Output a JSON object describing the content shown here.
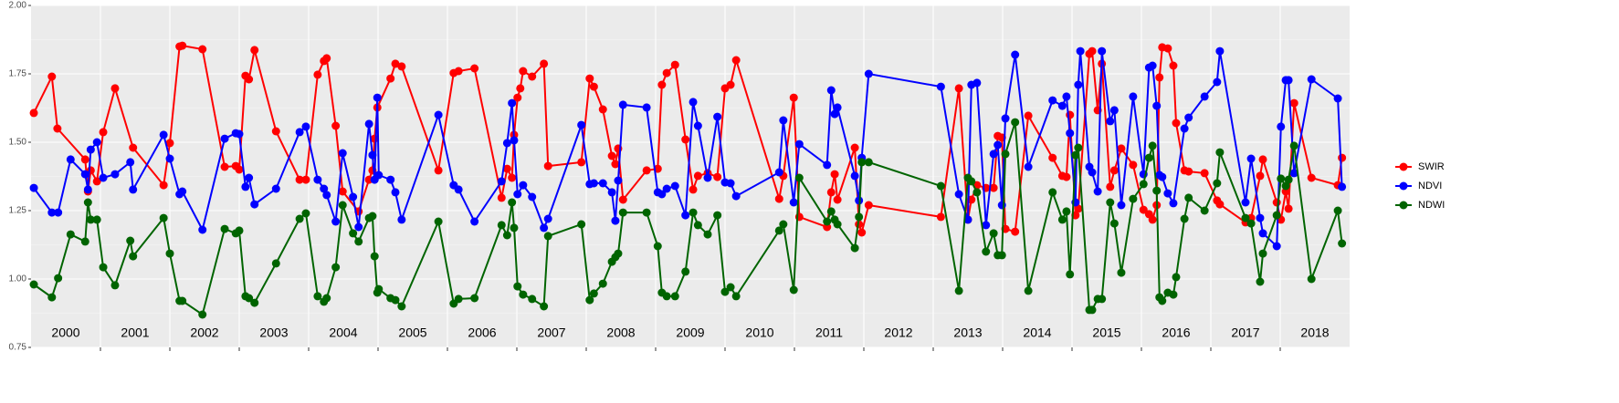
{
  "chart_data": {
    "type": "line",
    "xlim": [
      2000,
      2019
    ],
    "xticks": [
      {
        "value": 2000.5,
        "label": "2000"
      },
      {
        "value": 2001.5,
        "label": "2001"
      },
      {
        "value": 2002.5,
        "label": "2002"
      },
      {
        "value": 2003.5,
        "label": "2003"
      },
      {
        "value": 2004.5,
        "label": "2004"
      },
      {
        "value": 2005.5,
        "label": "2005"
      },
      {
        "value": 2006.5,
        "label": "2006"
      },
      {
        "value": 2007.5,
        "label": "2007"
      },
      {
        "value": 2008.5,
        "label": "2008"
      },
      {
        "value": 2009.5,
        "label": "2009"
      },
      {
        "value": 2010.5,
        "label": "2010"
      },
      {
        "value": 2011.5,
        "label": "2011"
      },
      {
        "value": 2012.5,
        "label": "2012"
      },
      {
        "value": 2013.5,
        "label": "2013"
      },
      {
        "value": 2014.5,
        "label": "2014"
      },
      {
        "value": 2015.5,
        "label": "2015"
      },
      {
        "value": 2016.5,
        "label": "2016"
      },
      {
        "value": 2017.5,
        "label": "2017"
      },
      {
        "value": 2018.5,
        "label": "2018"
      }
    ],
    "ylim": [
      0.75,
      2.0
    ],
    "yticks": [
      {
        "value": 0.75,
        "label": "0.75"
      },
      {
        "value": 1.0,
        "label": "1.00"
      },
      {
        "value": 1.25,
        "label": "1.25"
      },
      {
        "value": 1.5,
        "label": "1.50"
      },
      {
        "value": 1.75,
        "label": "1.75"
      },
      {
        "value": 2.0,
        "label": "2.00"
      }
    ],
    "grid": true,
    "legend": "right",
    "series": [
      {
        "name": "SWIR",
        "color": "#ff0000",
        "x": [
          2000.04,
          2000.3,
          2000.38,
          2000.78,
          2000.82,
          2000.86,
          2000.95,
          2001.04,
          2001.21,
          2001.47,
          2001.91,
          2002.0,
          2002.14,
          2002.18,
          2002.47,
          2002.79,
          2002.95,
          2003.0,
          2003.09,
          2003.14,
          2003.22,
          2003.53,
          2003.87,
          2003.96,
          2004.13,
          2004.22,
          2004.26,
          2004.39,
          2004.49,
          2004.72,
          2004.87,
          2004.92,
          2004.95,
          2004.99,
          2005.18,
          2005.25,
          2005.34,
          2005.87,
          2006.09,
          2006.16,
          2006.39,
          2006.78,
          2006.86,
          2006.93,
          2006.96,
          2007.01,
          2007.05,
          2007.09,
          2007.22,
          2007.39,
          2007.45,
          2007.93,
          2008.05,
          2008.11,
          2008.24,
          2008.37,
          2008.42,
          2008.46,
          2008.53,
          2008.87,
          2009.03,
          2009.09,
          2009.16,
          2009.28,
          2009.43,
          2009.54,
          2009.61,
          2009.75,
          2009.89,
          2010.0,
          2010.08,
          2010.16,
          2010.78,
          2010.84,
          2010.99,
          2011.07,
          2011.47,
          2011.53,
          2011.58,
          2011.62,
          2011.87,
          2011.93,
          2011.97,
          2012.07,
          2013.11,
          2013.37,
          2013.5,
          2013.55,
          2013.63,
          2013.76,
          2013.87,
          2013.93,
          2013.99,
          2014.04,
          2014.18,
          2014.37,
          2014.72,
          2014.86,
          2014.92,
          2014.97,
          2015.05,
          2015.09,
          2015.25,
          2015.29,
          2015.37,
          2015.43,
          2015.55,
          2015.61,
          2015.71,
          2015.88,
          2016.03,
          2016.11,
          2016.16,
          2016.22,
          2016.26,
          2016.3,
          2016.38,
          2016.46,
          2016.5,
          2016.62,
          2016.68,
          2016.91,
          2017.09,
          2017.13,
          2017.5,
          2017.58,
          2017.71,
          2017.75,
          2017.95,
          2018.01,
          2018.08,
          2018.12,
          2018.2,
          2018.45,
          2018.83,
          2018.89
        ],
        "values": [
          1.607,
          1.74,
          1.55,
          1.437,
          1.32,
          1.397,
          1.357,
          1.537,
          1.697,
          1.48,
          1.343,
          1.497,
          1.85,
          1.853,
          1.84,
          1.41,
          1.413,
          1.4,
          1.743,
          1.73,
          1.837,
          1.54,
          1.363,
          1.363,
          1.747,
          1.797,
          1.807,
          1.56,
          1.32,
          1.247,
          1.363,
          1.397,
          1.513,
          1.627,
          1.733,
          1.787,
          1.777,
          1.397,
          1.753,
          1.76,
          1.77,
          1.297,
          1.403,
          1.37,
          1.527,
          1.663,
          1.697,
          1.76,
          1.74,
          1.787,
          1.413,
          1.427,
          1.733,
          1.703,
          1.62,
          1.45,
          1.42,
          1.477,
          1.29,
          1.397,
          1.403,
          1.71,
          1.753,
          1.783,
          1.51,
          1.327,
          1.377,
          1.387,
          1.373,
          1.697,
          1.71,
          1.8,
          1.293,
          1.377,
          1.663,
          1.227,
          1.19,
          1.317,
          1.383,
          1.29,
          1.48,
          1.2,
          1.17,
          1.27,
          1.227,
          1.697,
          1.217,
          1.29,
          1.343,
          1.333,
          1.333,
          1.523,
          1.517,
          1.183,
          1.173,
          1.597,
          1.443,
          1.377,
          1.373,
          1.6,
          1.233,
          1.257,
          1.823,
          1.833,
          1.617,
          1.787,
          1.337,
          1.397,
          1.477,
          1.417,
          1.253,
          1.237,
          1.217,
          1.27,
          1.737,
          1.847,
          1.843,
          1.78,
          1.57,
          1.397,
          1.393,
          1.387,
          1.287,
          1.273,
          1.207,
          1.223,
          1.377,
          1.437,
          1.28,
          1.217,
          1.32,
          1.257,
          1.643,
          1.37,
          1.343,
          1.443
        ]
      },
      {
        "name": "NDVI",
        "color": "#0000ff",
        "x": [
          2000.04,
          2000.3,
          2000.39,
          2000.57,
          2000.78,
          2000.82,
          2000.86,
          2000.95,
          2001.04,
          2001.21,
          2001.43,
          2001.47,
          2001.91,
          2002.0,
          2002.14,
          2002.18,
          2002.47,
          2002.79,
          2002.95,
          2003.0,
          2003.09,
          2003.14,
          2003.22,
          2003.53,
          2003.87,
          2003.96,
          2004.13,
          2004.22,
          2004.26,
          2004.39,
          2004.49,
          2004.64,
          2004.72,
          2004.87,
          2004.92,
          2004.95,
          2004.99,
          2005.01,
          2005.18,
          2005.25,
          2005.34,
          2005.87,
          2006.09,
          2006.16,
          2006.39,
          2006.78,
          2006.86,
          2006.93,
          2006.96,
          2007.01,
          2007.09,
          2007.22,
          2007.39,
          2007.45,
          2007.93,
          2008.05,
          2008.11,
          2008.24,
          2008.37,
          2008.42,
          2008.46,
          2008.53,
          2008.87,
          2009.03,
          2009.09,
          2009.16,
          2009.28,
          2009.43,
          2009.54,
          2009.61,
          2009.75,
          2009.89,
          2010.0,
          2010.08,
          2010.16,
          2010.78,
          2010.84,
          2010.99,
          2011.07,
          2011.47,
          2011.53,
          2011.58,
          2011.62,
          2011.87,
          2011.93,
          2011.97,
          2012.07,
          2013.11,
          2013.37,
          2013.5,
          2013.55,
          2013.63,
          2013.76,
          2013.87,
          2013.93,
          2013.99,
          2014.04,
          2014.18,
          2014.37,
          2014.72,
          2014.86,
          2014.92,
          2014.97,
          2015.05,
          2015.09,
          2015.12,
          2015.25,
          2015.29,
          2015.37,
          2015.43,
          2015.55,
          2015.61,
          2015.71,
          2015.88,
          2016.03,
          2016.11,
          2016.16,
          2016.22,
          2016.26,
          2016.3,
          2016.38,
          2016.46,
          2016.62,
          2016.68,
          2016.91,
          2017.09,
          2017.13,
          2017.5,
          2017.58,
          2017.71,
          2017.75,
          2017.95,
          2018.01,
          2018.08,
          2018.12,
          2018.2,
          2018.45,
          2018.83,
          2018.89
        ],
        "values": [
          1.333,
          1.243,
          1.243,
          1.437,
          1.383,
          1.327,
          1.473,
          1.5,
          1.37,
          1.383,
          1.427,
          1.327,
          1.527,
          1.44,
          1.31,
          1.32,
          1.18,
          1.513,
          1.533,
          1.53,
          1.337,
          1.37,
          1.273,
          1.33,
          1.537,
          1.557,
          1.363,
          1.33,
          1.307,
          1.21,
          1.46,
          1.3,
          1.19,
          1.567,
          1.453,
          1.363,
          1.663,
          1.38,
          1.363,
          1.317,
          1.217,
          1.6,
          1.343,
          1.327,
          1.21,
          1.357,
          1.497,
          1.643,
          1.507,
          1.31,
          1.343,
          1.3,
          1.187,
          1.22,
          1.563,
          1.347,
          1.35,
          1.35,
          1.317,
          1.213,
          1.36,
          1.637,
          1.627,
          1.317,
          1.31,
          1.33,
          1.34,
          1.233,
          1.647,
          1.56,
          1.37,
          1.593,
          1.353,
          1.35,
          1.303,
          1.39,
          1.58,
          1.28,
          1.493,
          1.417,
          1.69,
          1.603,
          1.627,
          1.377,
          1.287,
          1.443,
          1.75,
          1.703,
          1.31,
          1.217,
          1.71,
          1.717,
          1.197,
          1.457,
          1.49,
          1.27,
          1.587,
          1.82,
          1.41,
          1.653,
          1.633,
          1.667,
          1.533,
          1.28,
          1.71,
          1.833,
          1.41,
          1.39,
          1.32,
          1.833,
          1.577,
          1.617,
          1.27,
          1.667,
          1.383,
          1.773,
          1.78,
          1.633,
          1.38,
          1.373,
          1.313,
          1.277,
          1.55,
          1.59,
          1.667,
          1.72,
          1.833,
          1.28,
          1.44,
          1.223,
          1.167,
          1.12,
          1.557,
          1.727,
          1.727,
          1.387,
          1.73,
          1.66,
          1.337
        ]
      },
      {
        "name": "NDWI",
        "color": "#006400",
        "x": [
          2000.04,
          2000.3,
          2000.39,
          2000.57,
          2000.78,
          2000.82,
          2000.86,
          2000.95,
          2001.04,
          2001.21,
          2001.43,
          2001.47,
          2001.91,
          2002.0,
          2002.14,
          2002.18,
          2002.47,
          2002.79,
          2002.95,
          2003.0,
          2003.09,
          2003.14,
          2003.22,
          2003.53,
          2003.87,
          2003.96,
          2004.13,
          2004.22,
          2004.26,
          2004.39,
          2004.49,
          2004.64,
          2004.72,
          2004.87,
          2004.92,
          2004.95,
          2004.99,
          2005.01,
          2005.18,
          2005.25,
          2005.34,
          2005.87,
          2006.09,
          2006.16,
          2006.39,
          2006.78,
          2006.86,
          2006.93,
          2006.96,
          2007.01,
          2007.09,
          2007.22,
          2007.39,
          2007.45,
          2007.93,
          2008.05,
          2008.11,
          2008.24,
          2008.37,
          2008.42,
          2008.46,
          2008.53,
          2008.87,
          2009.03,
          2009.09,
          2009.16,
          2009.28,
          2009.43,
          2009.54,
          2009.61,
          2009.75,
          2009.89,
          2010.0,
          2010.08,
          2010.16,
          2010.78,
          2010.84,
          2010.99,
          2011.07,
          2011.47,
          2011.53,
          2011.58,
          2011.62,
          2011.87,
          2011.93,
          2011.97,
          2012.07,
          2013.11,
          2013.37,
          2013.5,
          2013.55,
          2013.63,
          2013.76,
          2013.87,
          2013.93,
          2013.99,
          2014.04,
          2014.18,
          2014.37,
          2014.72,
          2014.86,
          2014.92,
          2014.97,
          2015.05,
          2015.09,
          2015.25,
          2015.29,
          2015.37,
          2015.43,
          2015.55,
          2015.61,
          2015.71,
          2015.88,
          2016.03,
          2016.11,
          2016.16,
          2016.22,
          2016.26,
          2016.3,
          2016.38,
          2016.46,
          2016.5,
          2016.62,
          2016.68,
          2016.91,
          2017.09,
          2017.13,
          2017.5,
          2017.58,
          2017.71,
          2017.75,
          2017.95,
          2018.01,
          2018.08,
          2018.12,
          2018.2,
          2018.45,
          2018.83,
          2018.89
        ],
        "values": [
          0.98,
          0.933,
          1.003,
          1.163,
          1.137,
          1.28,
          1.217,
          1.217,
          1.043,
          0.977,
          1.14,
          1.083,
          1.223,
          1.093,
          0.92,
          0.92,
          0.87,
          1.183,
          1.167,
          1.177,
          0.937,
          0.93,
          0.913,
          1.057,
          1.22,
          1.24,
          0.937,
          0.917,
          0.93,
          1.043,
          1.27,
          1.167,
          1.137,
          1.223,
          1.23,
          1.083,
          0.95,
          0.963,
          0.93,
          0.923,
          0.9,
          1.21,
          0.91,
          0.927,
          0.93,
          1.197,
          1.16,
          1.28,
          1.187,
          0.973,
          0.943,
          0.927,
          0.9,
          1.157,
          1.2,
          0.923,
          0.947,
          0.983,
          1.063,
          1.08,
          1.093,
          1.243,
          1.243,
          1.12,
          0.95,
          0.937,
          0.937,
          1.027,
          1.243,
          1.197,
          1.163,
          1.233,
          0.953,
          0.97,
          0.937,
          1.177,
          1.2,
          0.96,
          1.37,
          1.21,
          1.247,
          1.217,
          1.2,
          1.113,
          1.227,
          1.427,
          1.427,
          1.34,
          0.957,
          1.37,
          1.357,
          1.317,
          1.1,
          1.167,
          1.087,
          1.087,
          1.457,
          1.573,
          0.957,
          1.317,
          1.217,
          1.247,
          1.017,
          1.453,
          1.48,
          0.887,
          0.887,
          0.927,
          0.927,
          1.28,
          1.203,
          1.023,
          1.293,
          1.347,
          1.443,
          1.487,
          1.323,
          0.933,
          0.92,
          0.95,
          0.943,
          1.007,
          1.22,
          1.297,
          1.25,
          1.35,
          1.463,
          1.223,
          1.203,
          0.99,
          1.093,
          1.233,
          1.367,
          1.34,
          1.363,
          1.487,
          1.0,
          1.25,
          1.13
        ]
      }
    ]
  }
}
